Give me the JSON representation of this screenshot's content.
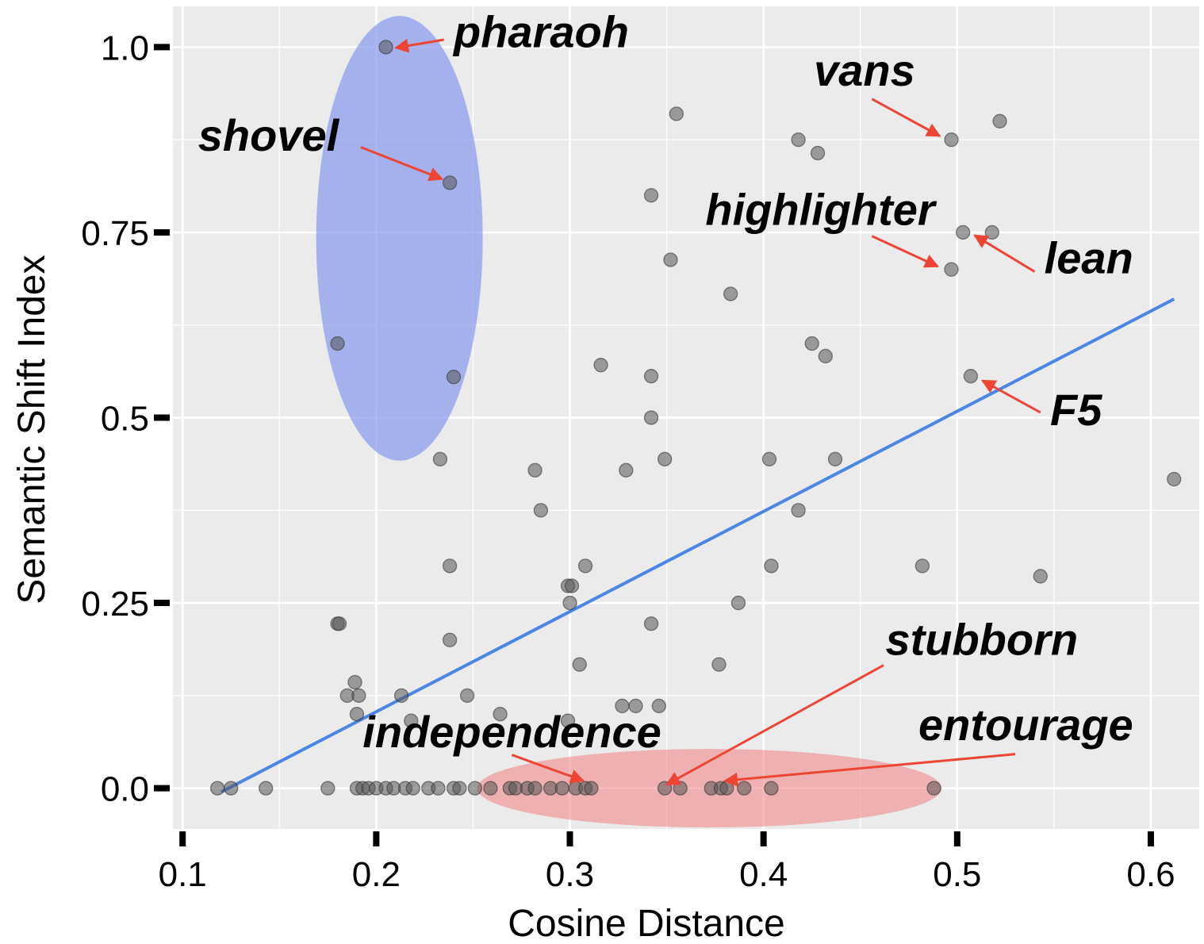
{
  "chart_data": {
    "type": "scatter",
    "xlabel": "Cosine Distance",
    "ylabel": "Semantic Shift Index",
    "xlim": [
      0.095,
      0.625
    ],
    "ylim": [
      -0.055,
      1.055
    ],
    "x_ticks": [
      0.1,
      0.2,
      0.3,
      0.4,
      0.5,
      0.6
    ],
    "x_tick_labels": [
      "0.1",
      "0.2",
      "0.3",
      "0.4",
      "0.5",
      "0.6"
    ],
    "y_ticks": [
      0.0,
      0.25,
      0.5,
      0.75,
      1.0
    ],
    "y_tick_labels": [
      "0.0",
      "0.25",
      "0.5",
      "0.75",
      "1.0"
    ],
    "grid": true,
    "background_color": "#ebebeb",
    "point_color": "#555555",
    "trend_color": "#4a86e8",
    "arrow_color": "#ee4433",
    "trend_line": {
      "x": [
        0.12,
        0.612
      ],
      "y": [
        -0.005,
        0.66
      ]
    },
    "points": [
      [
        0.205,
        1.0
      ],
      [
        0.238,
        0.817
      ],
      [
        0.18,
        0.6
      ],
      [
        0.24,
        0.555
      ],
      [
        0.355,
        0.91
      ],
      [
        0.418,
        0.875
      ],
      [
        0.428,
        0.857
      ],
      [
        0.497,
        0.875
      ],
      [
        0.522,
        0.9
      ],
      [
        0.342,
        0.8
      ],
      [
        0.503,
        0.75
      ],
      [
        0.518,
        0.75
      ],
      [
        0.352,
        0.713
      ],
      [
        0.497,
        0.7
      ],
      [
        0.383,
        0.667
      ],
      [
        0.425,
        0.6
      ],
      [
        0.432,
        0.583
      ],
      [
        0.316,
        0.571
      ],
      [
        0.342,
        0.556
      ],
      [
        0.507,
        0.556
      ],
      [
        0.342,
        0.5
      ],
      [
        0.233,
        0.444
      ],
      [
        0.349,
        0.444
      ],
      [
        0.403,
        0.444
      ],
      [
        0.437,
        0.444
      ],
      [
        0.282,
        0.429
      ],
      [
        0.329,
        0.429
      ],
      [
        0.612,
        0.417
      ],
      [
        0.285,
        0.375
      ],
      [
        0.418,
        0.375
      ],
      [
        0.238,
        0.3
      ],
      [
        0.308,
        0.3
      ],
      [
        0.404,
        0.3
      ],
      [
        0.482,
        0.3
      ],
      [
        0.543,
        0.286
      ],
      [
        0.299,
        0.273
      ],
      [
        0.301,
        0.273
      ],
      [
        0.3,
        0.25
      ],
      [
        0.387,
        0.25
      ],
      [
        0.18,
        0.222
      ],
      [
        0.181,
        0.222
      ],
      [
        0.342,
        0.222
      ],
      [
        0.238,
        0.2
      ],
      [
        0.305,
        0.167
      ],
      [
        0.377,
        0.167
      ],
      [
        0.189,
        0.143
      ],
      [
        0.185,
        0.125
      ],
      [
        0.191,
        0.125
      ],
      [
        0.213,
        0.125
      ],
      [
        0.247,
        0.125
      ],
      [
        0.327,
        0.111
      ],
      [
        0.334,
        0.111
      ],
      [
        0.346,
        0.111
      ],
      [
        0.19,
        0.1
      ],
      [
        0.264,
        0.1
      ],
      [
        0.218,
        0.091
      ],
      [
        0.299,
        0.091
      ],
      [
        0.118,
        0.0
      ],
      [
        0.125,
        0.0
      ],
      [
        0.143,
        0.0
      ],
      [
        0.175,
        0.0
      ],
      [
        0.19,
        0.0
      ],
      [
        0.193,
        0.0
      ],
      [
        0.196,
        0.0
      ],
      [
        0.2,
        0.0
      ],
      [
        0.205,
        0.0
      ],
      [
        0.209,
        0.0
      ],
      [
        0.215,
        0.0
      ],
      [
        0.219,
        0.0
      ],
      [
        0.227,
        0.0
      ],
      [
        0.232,
        0.0
      ],
      [
        0.24,
        0.0
      ],
      [
        0.243,
        0.0
      ],
      [
        0.251,
        0.0
      ],
      [
        0.259,
        0.0
      ],
      [
        0.269,
        0.0
      ],
      [
        0.272,
        0.0
      ],
      [
        0.278,
        0.0
      ],
      [
        0.282,
        0.0
      ],
      [
        0.29,
        0.0
      ],
      [
        0.296,
        0.0
      ],
      [
        0.303,
        0.0
      ],
      [
        0.308,
        0.0
      ],
      [
        0.311,
        0.0
      ],
      [
        0.349,
        0.0
      ],
      [
        0.357,
        0.0
      ],
      [
        0.373,
        0.0
      ],
      [
        0.378,
        0.0
      ],
      [
        0.381,
        0.0
      ],
      [
        0.39,
        0.0
      ],
      [
        0.404,
        0.0
      ],
      [
        0.488,
        0.0
      ]
    ],
    "regions": [
      {
        "name": "blue",
        "cx": 0.212,
        "cy": 0.742,
        "rx": 0.043,
        "ry": 0.3,
        "color": "#8899ee",
        "opacity": 0.7
      },
      {
        "name": "red",
        "cx": 0.372,
        "cy": 0.0,
        "rx": 0.12,
        "ry": 0.053,
        "color": "#f08080",
        "opacity": 0.55
      }
    ],
    "annotations": [
      {
        "text": "pharaoh",
        "label_x": 0.24,
        "label_y": 1.0,
        "anchor": "start",
        "arrow_from": [
          0.235,
          1.01
        ],
        "arrow_to": [
          0.21,
          0.999
        ]
      },
      {
        "text": "shovel",
        "label_x": 0.108,
        "label_y": 0.86,
        "anchor": "start",
        "arrow_from": [
          0.192,
          0.865
        ],
        "arrow_to": [
          0.234,
          0.822
        ]
      },
      {
        "text": "vans",
        "label_x": 0.426,
        "label_y": 0.948,
        "anchor": "start",
        "arrow_from": [
          0.456,
          0.93
        ],
        "arrow_to": [
          0.491,
          0.88
        ]
      },
      {
        "text": "highlighter",
        "label_x": 0.37,
        "label_y": 0.76,
        "anchor": "start",
        "arrow_from": [
          0.456,
          0.745
        ],
        "arrow_to": [
          0.49,
          0.704
        ]
      },
      {
        "text": "lean",
        "label_x": 0.545,
        "label_y": 0.695,
        "anchor": "start",
        "arrow_from": [
          0.54,
          0.697
        ],
        "arrow_to": [
          0.509,
          0.746
        ]
      },
      {
        "text": "F5",
        "label_x": 0.548,
        "label_y": 0.49,
        "anchor": "start",
        "arrow_from": [
          0.543,
          0.507
        ],
        "arrow_to": [
          0.513,
          0.55
        ]
      },
      {
        "text": "stubborn",
        "label_x": 0.463,
        "label_y": 0.18,
        "anchor": "start",
        "arrow_from": [
          0.462,
          0.166
        ],
        "arrow_to": [
          0.35,
          0.005
        ]
      },
      {
        "text": "independence",
        "label_x": 0.193,
        "label_y": 0.055,
        "anchor": "start",
        "arrow_from": [
          0.27,
          0.045
        ],
        "arrow_to": [
          0.307,
          0.01
        ]
      },
      {
        "text": "entourage",
        "label_x": 0.48,
        "label_y": 0.065,
        "anchor": "start",
        "arrow_from": [
          0.53,
          0.046
        ],
        "arrow_to": [
          0.38,
          0.01
        ]
      }
    ]
  }
}
